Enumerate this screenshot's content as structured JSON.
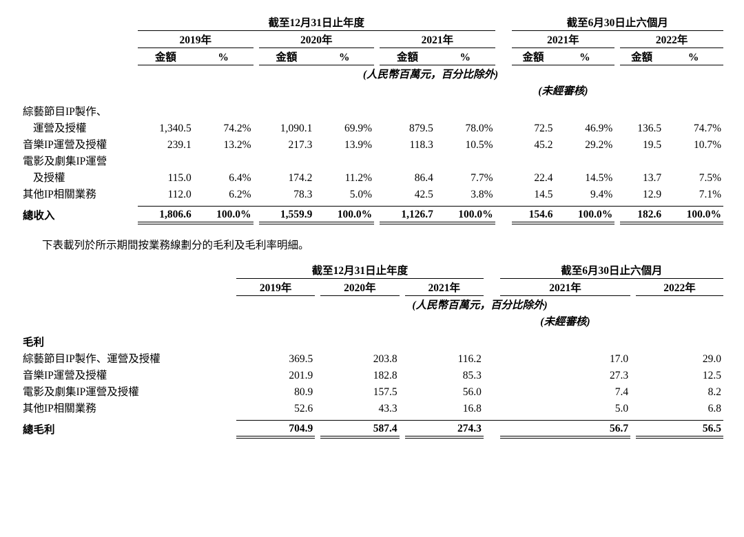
{
  "headers": {
    "period_year": "截至12月31日止年度",
    "period_half": "截至6月30日止六個月",
    "y2019": "2019年",
    "y2020": "2020年",
    "y2021": "2021年",
    "h2021": "2021年",
    "h2022": "2022年",
    "amount": "金額",
    "pct": "%",
    "unit_note": "(人民幣百萬元，百分比除外)",
    "unaudited": "(未經審核)"
  },
  "t1": {
    "rows": [
      {
        "l1": "綜藝節目IP製作、",
        "l2": "運營及授權",
        "a1": "1,340.5",
        "p1": "74.2%",
        "a2": "1,090.1",
        "p2": "69.9%",
        "a3": "879.5",
        "p3": "78.0%",
        "a4": "72.5",
        "p4": "46.9%",
        "a5": "136.5",
        "p5": "74.7%"
      },
      {
        "l1": "音樂IP運營及授權",
        "a1": "239.1",
        "p1": "13.2%",
        "a2": "217.3",
        "p2": "13.9%",
        "a3": "118.3",
        "p3": "10.5%",
        "a4": "45.2",
        "p4": "29.2%",
        "a5": "19.5",
        "p5": "10.7%"
      },
      {
        "l1": "電影及劇集IP運營",
        "l2": "及授權",
        "a1": "115.0",
        "p1": "6.4%",
        "a2": "174.2",
        "p2": "11.2%",
        "a3": "86.4",
        "p3": "7.7%",
        "a4": "22.4",
        "p4": "14.5%",
        "a5": "13.7",
        "p5": "7.5%"
      },
      {
        "l1": "其他IP相關業務",
        "a1": "112.0",
        "p1": "6.2%",
        "a2": "78.3",
        "p2": "5.0%",
        "a3": "42.5",
        "p3": "3.8%",
        "a4": "14.5",
        "p4": "9.4%",
        "a5": "12.9",
        "p5": "7.1%"
      }
    ],
    "total": {
      "label": "總收入",
      "a1": "1,806.6",
      "p1": "100.0%",
      "a2": "1,559.9",
      "p2": "100.0%",
      "a3": "1,126.7",
      "p3": "100.0%",
      "a4": "154.6",
      "p4": "100.0%",
      "a5": "182.6",
      "p5": "100.0%"
    }
  },
  "intertext": "下表載列於所示期間按業務線劃分的毛利及毛利率明細。",
  "t2": {
    "section": "毛利",
    "rows": [
      {
        "l": "綜藝節目IP製作、運營及授權",
        "v1": "369.5",
        "v2": "203.8",
        "v3": "116.2",
        "v4": "17.0",
        "v5": "29.0"
      },
      {
        "l": "音樂IP運營及授權",
        "v1": "201.9",
        "v2": "182.8",
        "v3": "85.3",
        "v4": "27.3",
        "v5": "12.5"
      },
      {
        "l": "電影及劇集IP運營及授權",
        "v1": "80.9",
        "v2": "157.5",
        "v3": "56.0",
        "v4": "7.4",
        "v5": "8.2"
      },
      {
        "l": "其他IP相關業務",
        "v1": "52.6",
        "v2": "43.3",
        "v3": "16.8",
        "v4": "5.0",
        "v5": "6.8"
      }
    ],
    "total": {
      "label": "總毛利",
      "v1": "704.9",
      "v2": "587.4",
      "v3": "274.3",
      "v4": "56.7",
      "v5": "56.5"
    }
  },
  "style": {
    "text_color": "#000000",
    "background_color": "#ffffff",
    "border_color": "#000000",
    "font_family": "serif",
    "body_fontsize_pt": 12,
    "header_bold": true,
    "double_underline_total": true
  }
}
